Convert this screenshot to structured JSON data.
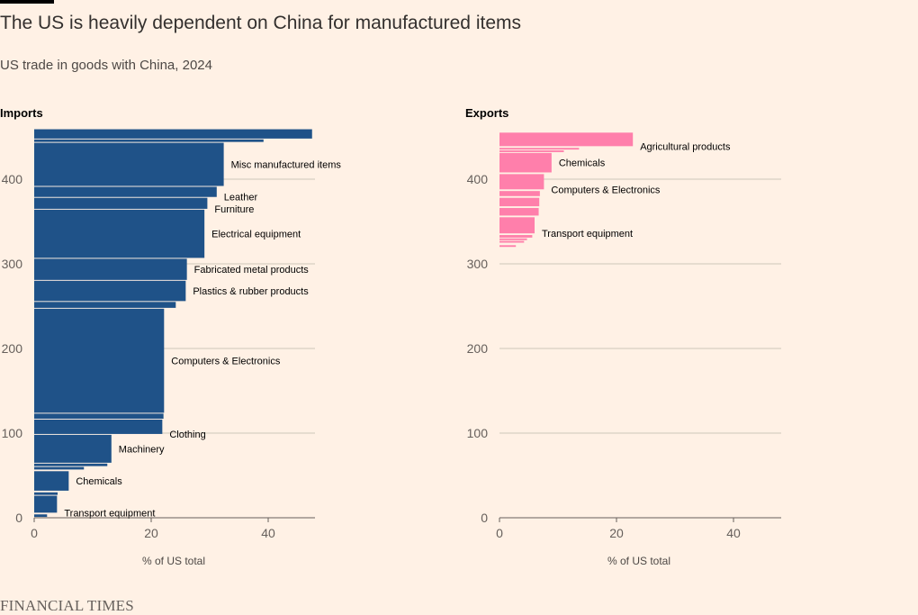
{
  "header": {
    "title": "The US is heavily dependent on China for manufactured items",
    "subtitle": "US trade in goods with China, 2024"
  },
  "source": "FINANCIAL TIMES",
  "colors": {
    "imports": "#1f5288",
    "exports": "#ff7fab",
    "background": "#fff1e5",
    "grid": "#cec6b9"
  },
  "chart_data": [
    {
      "type": "bar",
      "title": "Imports",
      "xlabel": "% of US total",
      "ylabel": "",
      "xlim": [
        0,
        48
      ],
      "ylim": [
        0,
        460
      ],
      "xticks": [
        0,
        20,
        40
      ],
      "yticks": [
        0,
        100,
        200,
        300,
        400
      ],
      "grid": true,
      "bars": [
        {
          "label": "",
          "value": 47.5,
          "y0": 448,
          "y1": 459
        },
        {
          "label": "",
          "value": 39.2,
          "y0": 444,
          "y1": 447
        },
        {
          "label": "Misc manufactured items",
          "value": 32.4,
          "y0": 392,
          "y1": 443
        },
        {
          "label": "Leather",
          "value": 31.2,
          "y0": 379,
          "y1": 391
        },
        {
          "label": "Furniture",
          "value": 29.6,
          "y0": 365,
          "y1": 378
        },
        {
          "label": "Electrical equipment",
          "value": 29.1,
          "y0": 307,
          "y1": 364
        },
        {
          "label": "Fabricated metal products",
          "value": 26.1,
          "y0": 281,
          "y1": 306
        },
        {
          "label": "Plastics & rubber products",
          "value": 25.9,
          "y0": 256,
          "y1": 280
        },
        {
          "label": "",
          "value": 24.2,
          "y0": 248,
          "y1": 255
        },
        {
          "label": "Computers & Electronics",
          "value": 22.2,
          "y0": 124,
          "y1": 247
        },
        {
          "label": "",
          "value": 22.1,
          "y0": 117,
          "y1": 123
        },
        {
          "label": "Clothing",
          "value": 21.9,
          "y0": 99,
          "y1": 116
        },
        {
          "label": "Machinery",
          "value": 13.2,
          "y0": 65,
          "y1": 98
        },
        {
          "label": "",
          "value": 12.5,
          "y0": 61,
          "y1": 64
        },
        {
          "label": "",
          "value": 8.5,
          "y0": 57,
          "y1": 60
        },
        {
          "label": "Chemicals",
          "value": 5.9,
          "y0": 32,
          "y1": 55
        },
        {
          "label": "",
          "value": 4.0,
          "y0": 27,
          "y1": 30
        },
        {
          "label": "Transport equipment",
          "value": 3.9,
          "y0": 6,
          "y1": 26
        },
        {
          "label": "",
          "value": 2.2,
          "y0": 1,
          "y1": 4
        }
      ]
    },
    {
      "type": "bar",
      "title": "Exports",
      "xlabel": "% of US total",
      "ylabel": "",
      "xlim": [
        0,
        48
      ],
      "ylim": [
        0,
        460
      ],
      "xticks": [
        0,
        20,
        40
      ],
      "yticks": [
        0,
        100,
        200,
        300,
        400
      ],
      "grid": true,
      "bars": [
        {
          "label": "Agricultural products",
          "value": 22.8,
          "y0": 439,
          "y1": 455
        },
        {
          "label": "",
          "value": 13.6,
          "y0": 435,
          "y1": 437
        },
        {
          "label": "",
          "value": 11.0,
          "y0": 432,
          "y1": 434
        },
        {
          "label": "Chemicals",
          "value": 8.9,
          "y0": 408,
          "y1": 431
        },
        {
          "label": "Computers & Electronics",
          "value": 7.6,
          "y0": 388,
          "y1": 406
        },
        {
          "label": "",
          "value": 6.9,
          "y0": 380,
          "y1": 386
        },
        {
          "label": "",
          "value": 6.8,
          "y0": 368,
          "y1": 378
        },
        {
          "label": "",
          "value": 6.7,
          "y0": 357,
          "y1": 366
        },
        {
          "label": "Transport equipment",
          "value": 6.0,
          "y0": 336,
          "y1": 355
        },
        {
          "label": "",
          "value": 5.6,
          "y0": 331,
          "y1": 334
        },
        {
          "label": "",
          "value": 4.7,
          "y0": 328,
          "y1": 330
        },
        {
          "label": "",
          "value": 4.2,
          "y0": 325,
          "y1": 327
        },
        {
          "label": "",
          "value": 2.8,
          "y0": 320,
          "y1": 322
        }
      ]
    }
  ]
}
